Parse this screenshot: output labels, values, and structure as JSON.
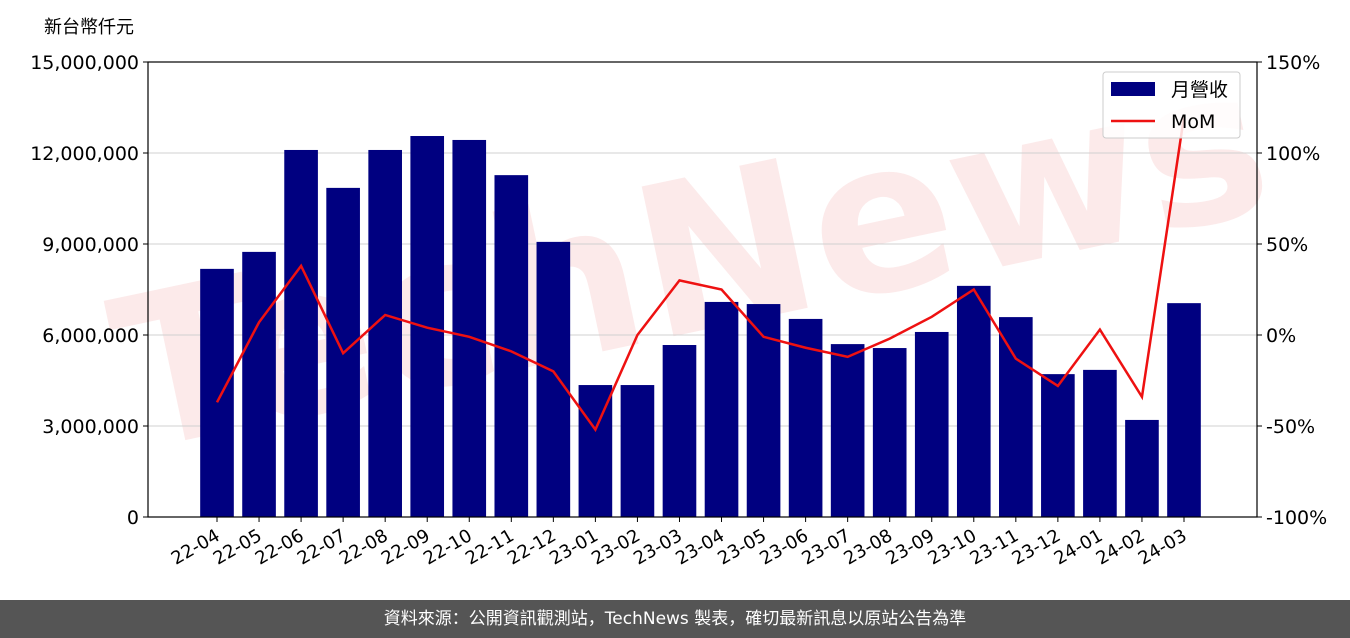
{
  "chart_data": {
    "type": "bar-line",
    "ylabel": "新台幣仟元",
    "watermark": "TechNews",
    "categories": [
      "22-04",
      "22-05",
      "22-06",
      "22-07",
      "22-08",
      "22-09",
      "22-10",
      "22-11",
      "22-12",
      "23-01",
      "23-02",
      "23-03",
      "23-04",
      "23-05",
      "23-06",
      "23-07",
      "23-08",
      "23-09",
      "23-10",
      "23-11",
      "23-12",
      "24-01",
      "24-02",
      "24-03"
    ],
    "series": [
      {
        "name": "月營收",
        "type": "bar",
        "color": "#000080",
        "values": [
          8180000,
          8740000,
          12100000,
          10850000,
          12100000,
          12560000,
          12430000,
          11270000,
          9070000,
          4350000,
          4350000,
          5670000,
          7090000,
          7020000,
          6530000,
          5700000,
          5570000,
          6100000,
          7620000,
          6590000,
          4710000,
          4850000,
          3200000,
          7050000
        ]
      },
      {
        "name": "MoM",
        "type": "line",
        "axis": "y2",
        "color": "#ee1111",
        "values": [
          -37,
          7,
          38,
          -10,
          11,
          4,
          -1,
          -9,
          -20,
          -52,
          0,
          30,
          25,
          -1,
          -7,
          -12,
          -2,
          10,
          25,
          -13,
          -28,
          3,
          -34,
          120
        ]
      }
    ],
    "ylim": [
      0,
      15000000
    ],
    "yticks": [
      {
        "value": 0,
        "label": "0"
      },
      {
        "value": 3000000,
        "label": "3,000,000"
      },
      {
        "value": 6000000,
        "label": "6,000,000"
      },
      {
        "value": 9000000,
        "label": "9,000,000"
      },
      {
        "value": 12000000,
        "label": "12,000,000"
      },
      {
        "value": 15000000,
        "label": "15,000,000"
      }
    ],
    "y2lim": [
      -100,
      150
    ],
    "y2ticks": [
      {
        "value": -100,
        "label": "-100%"
      },
      {
        "value": -50,
        "label": "-50%"
      },
      {
        "value": 0,
        "label": "0%"
      },
      {
        "value": 50,
        "label": "50%"
      },
      {
        "value": 100,
        "label": "100%"
      },
      {
        "value": 150,
        "label": "150%"
      }
    ],
    "grid": true,
    "legend": "upper right"
  },
  "footer": "資料來源：公開資訊觀測站，TechNews 製表，確切最新訊息以原站公告為準"
}
